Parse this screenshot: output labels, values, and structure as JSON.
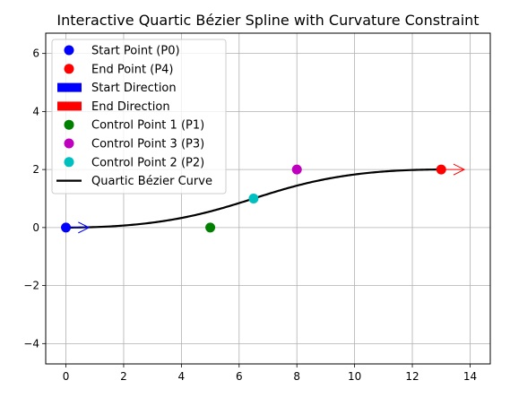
{
  "chart_data": {
    "type": "line",
    "title": "Interactive Quartic Bézier Spline with Curvature Constraint",
    "xlabel": "",
    "ylabel": "",
    "xlim": [
      -0.7,
      14.7
    ],
    "ylim": [
      -4.7,
      6.7
    ],
    "xticks": [
      0,
      2,
      4,
      6,
      8,
      10,
      12,
      14
    ],
    "yticks": [
      -4,
      -2,
      0,
      2,
      4,
      6
    ],
    "xtick_labels": [
      "0",
      "2",
      "4",
      "6",
      "8",
      "10",
      "12",
      "14"
    ],
    "ytick_labels": [
      "−4",
      "−2",
      "0",
      "2",
      "4",
      "6"
    ],
    "grid": true,
    "legend_position": "upper-left",
    "points": [
      {
        "name": "Start Point (P0)",
        "x": 0,
        "y": 0,
        "color": "#0000ff"
      },
      {
        "name": "End Point (P4)",
        "x": 13,
        "y": 2,
        "color": "#ff0000"
      },
      {
        "name": "Control Point 1 (P1)",
        "x": 5,
        "y": 0,
        "color": "#008000"
      },
      {
        "name": "Control Point 3 (P3)",
        "x": 8,
        "y": 2,
        "color": "#bf00bf"
      },
      {
        "name": "Control Point 2 (P2)",
        "x": 6.5,
        "y": 1,
        "color": "#00bfbf"
      }
    ],
    "arrows": [
      {
        "name": "Start Direction",
        "x": 0,
        "y": 0,
        "dx": 0.8,
        "dy": 0,
        "color": "#0000ff"
      },
      {
        "name": "End Direction",
        "x": 13,
        "y": 2,
        "dx": 0.8,
        "dy": 0,
        "color": "#ff0000"
      }
    ],
    "series": [
      {
        "name": "Quartic Bézier Curve",
        "color": "#000000",
        "control_points": [
          [
            0,
            0
          ],
          [
            5,
            0
          ],
          [
            6.5,
            1
          ],
          [
            8,
            2
          ],
          [
            13,
            2
          ]
        ]
      }
    ],
    "legend": [
      {
        "label": "Start Point (P0)",
        "kind": "marker",
        "color": "#0000ff"
      },
      {
        "label": "End Point (P4)",
        "kind": "marker",
        "color": "#ff0000"
      },
      {
        "label": "Start Direction",
        "kind": "patch",
        "color": "#0000ff"
      },
      {
        "label": "End Direction",
        "kind": "patch",
        "color": "#ff0000"
      },
      {
        "label": "Control Point 1 (P1)",
        "kind": "marker",
        "color": "#008000"
      },
      {
        "label": "Control Point 3 (P3)",
        "kind": "marker",
        "color": "#bf00bf"
      },
      {
        "label": "Control Point 2 (P2)",
        "kind": "marker",
        "color": "#00bfbf"
      },
      {
        "label": "Quartic Bézier Curve",
        "kind": "line",
        "color": "#000000"
      }
    ]
  }
}
